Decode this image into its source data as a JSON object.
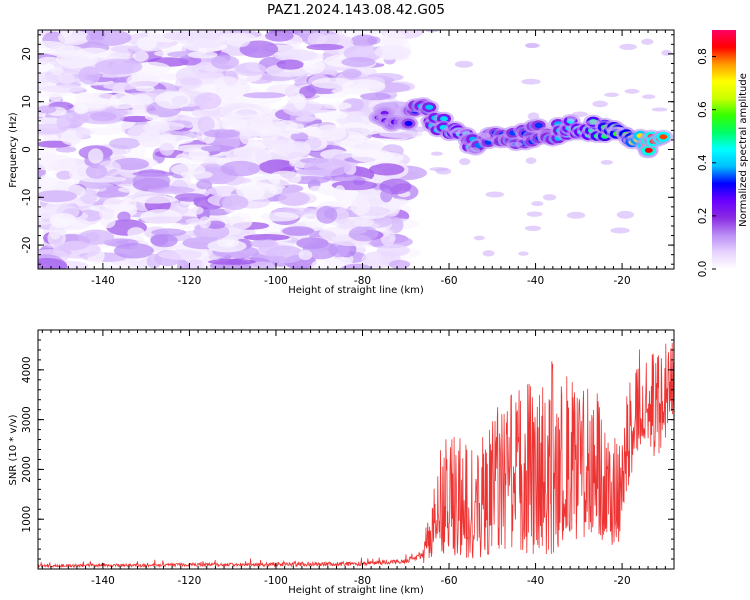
{
  "figure": {
    "title": "PAZ1.2024.143.08.42.G05"
  },
  "chart_data": [
    {
      "type": "heatmap",
      "xlabel": "Height of straight line (km)",
      "ylabel": "Frequency (Hz)",
      "xlim": [
        -155,
        -8
      ],
      "ylim": [
        -25,
        25
      ],
      "xticks": [
        -140,
        -120,
        -100,
        -80,
        -60,
        -40,
        -20
      ],
      "yticks": [
        -20,
        -10,
        0,
        10,
        20
      ],
      "colorbar": {
        "label": "Normalized spectral amplitude",
        "range": [
          0,
          0.9
        ],
        "ticks": [
          0.0,
          0.2,
          0.4,
          0.6,
          0.8
        ],
        "colormap": [
          "#ffffff",
          "#e6d2ff",
          "#b98cf5",
          "#8a2be2",
          "#6a00ff",
          "#0000ff",
          "#00bfff",
          "#00ffff",
          "#00ff66",
          "#33ff00",
          "#ccff00",
          "#ffff00",
          "#ff9900",
          "#ff0000",
          "#ff0066"
        ]
      },
      "ridge": {
        "description": "dominant signal track",
        "points": [
          {
            "x": -76,
            "y": 6.5,
            "amp": 0.22
          },
          {
            "x": -70,
            "y": 6.0,
            "amp": 0.28
          },
          {
            "x": -66,
            "y": 8.5,
            "amp": 0.38
          },
          {
            "x": -62,
            "y": 5.5,
            "amp": 0.4
          },
          {
            "x": -58,
            "y": 3.5,
            "amp": 0.45
          },
          {
            "x": -54,
            "y": 1.0,
            "amp": 0.38
          },
          {
            "x": -50,
            "y": 3.5,
            "amp": 0.32
          },
          {
            "x": -46,
            "y": 1.5,
            "amp": 0.35
          },
          {
            "x": -42,
            "y": 3.0,
            "amp": 0.33
          },
          {
            "x": -38,
            "y": 3.5,
            "amp": 0.34
          },
          {
            "x": -34,
            "y": 4.0,
            "amp": 0.4
          },
          {
            "x": -30,
            "y": 5.0,
            "amp": 0.45
          },
          {
            "x": -26,
            "y": 4.5,
            "amp": 0.5
          },
          {
            "x": -22,
            "y": 3.5,
            "amp": 0.55
          },
          {
            "x": -18,
            "y": 2.0,
            "amp": 0.6
          },
          {
            "x": -14,
            "y": 1.0,
            "amp": 0.85
          },
          {
            "x": -10,
            "y": 1.0,
            "amp": 0.8
          }
        ]
      }
    },
    {
      "type": "line",
      "xlabel": "Height of straight line (km)",
      "ylabel": "SNR (10 * v/v)",
      "xlim": [
        -155,
        -8
      ],
      "ylim": [
        0,
        4800
      ],
      "xticks": [
        -140,
        -120,
        -100,
        -80,
        -60,
        -40,
        -20
      ],
      "yticks": [
        1000,
        2000,
        3000,
        4000
      ],
      "series": [
        {
          "color": "#ee3333",
          "envelope": [
            {
              "x": -155,
              "lo": 0,
              "hi": 150
            },
            {
              "x": -80,
              "lo": 0,
              "hi": 250
            },
            {
              "x": -70,
              "lo": 50,
              "hi": 300
            },
            {
              "x": -66,
              "lo": 100,
              "hi": 600
            },
            {
              "x": -64,
              "lo": 200,
              "hi": 1300
            },
            {
              "x": -61,
              "lo": 300,
              "hi": 3000
            },
            {
              "x": -55,
              "lo": 200,
              "hi": 2400
            },
            {
              "x": -48,
              "lo": 300,
              "hi": 3400
            },
            {
              "x": -42,
              "lo": 300,
              "hi": 3700
            },
            {
              "x": -36,
              "lo": 300,
              "hi": 4200
            },
            {
              "x": -30,
              "lo": 600,
              "hi": 3800
            },
            {
              "x": -26,
              "lo": 600,
              "hi": 3600
            },
            {
              "x": -21,
              "lo": 400,
              "hi": 2500
            },
            {
              "x": -19,
              "lo": 1500,
              "hi": 3500
            },
            {
              "x": -16,
              "lo": 2500,
              "hi": 4700
            },
            {
              "x": -12,
              "lo": 2200,
              "hi": 4300
            },
            {
              "x": -8,
              "lo": 3000,
              "hi": 4800
            }
          ]
        }
      ]
    }
  ]
}
